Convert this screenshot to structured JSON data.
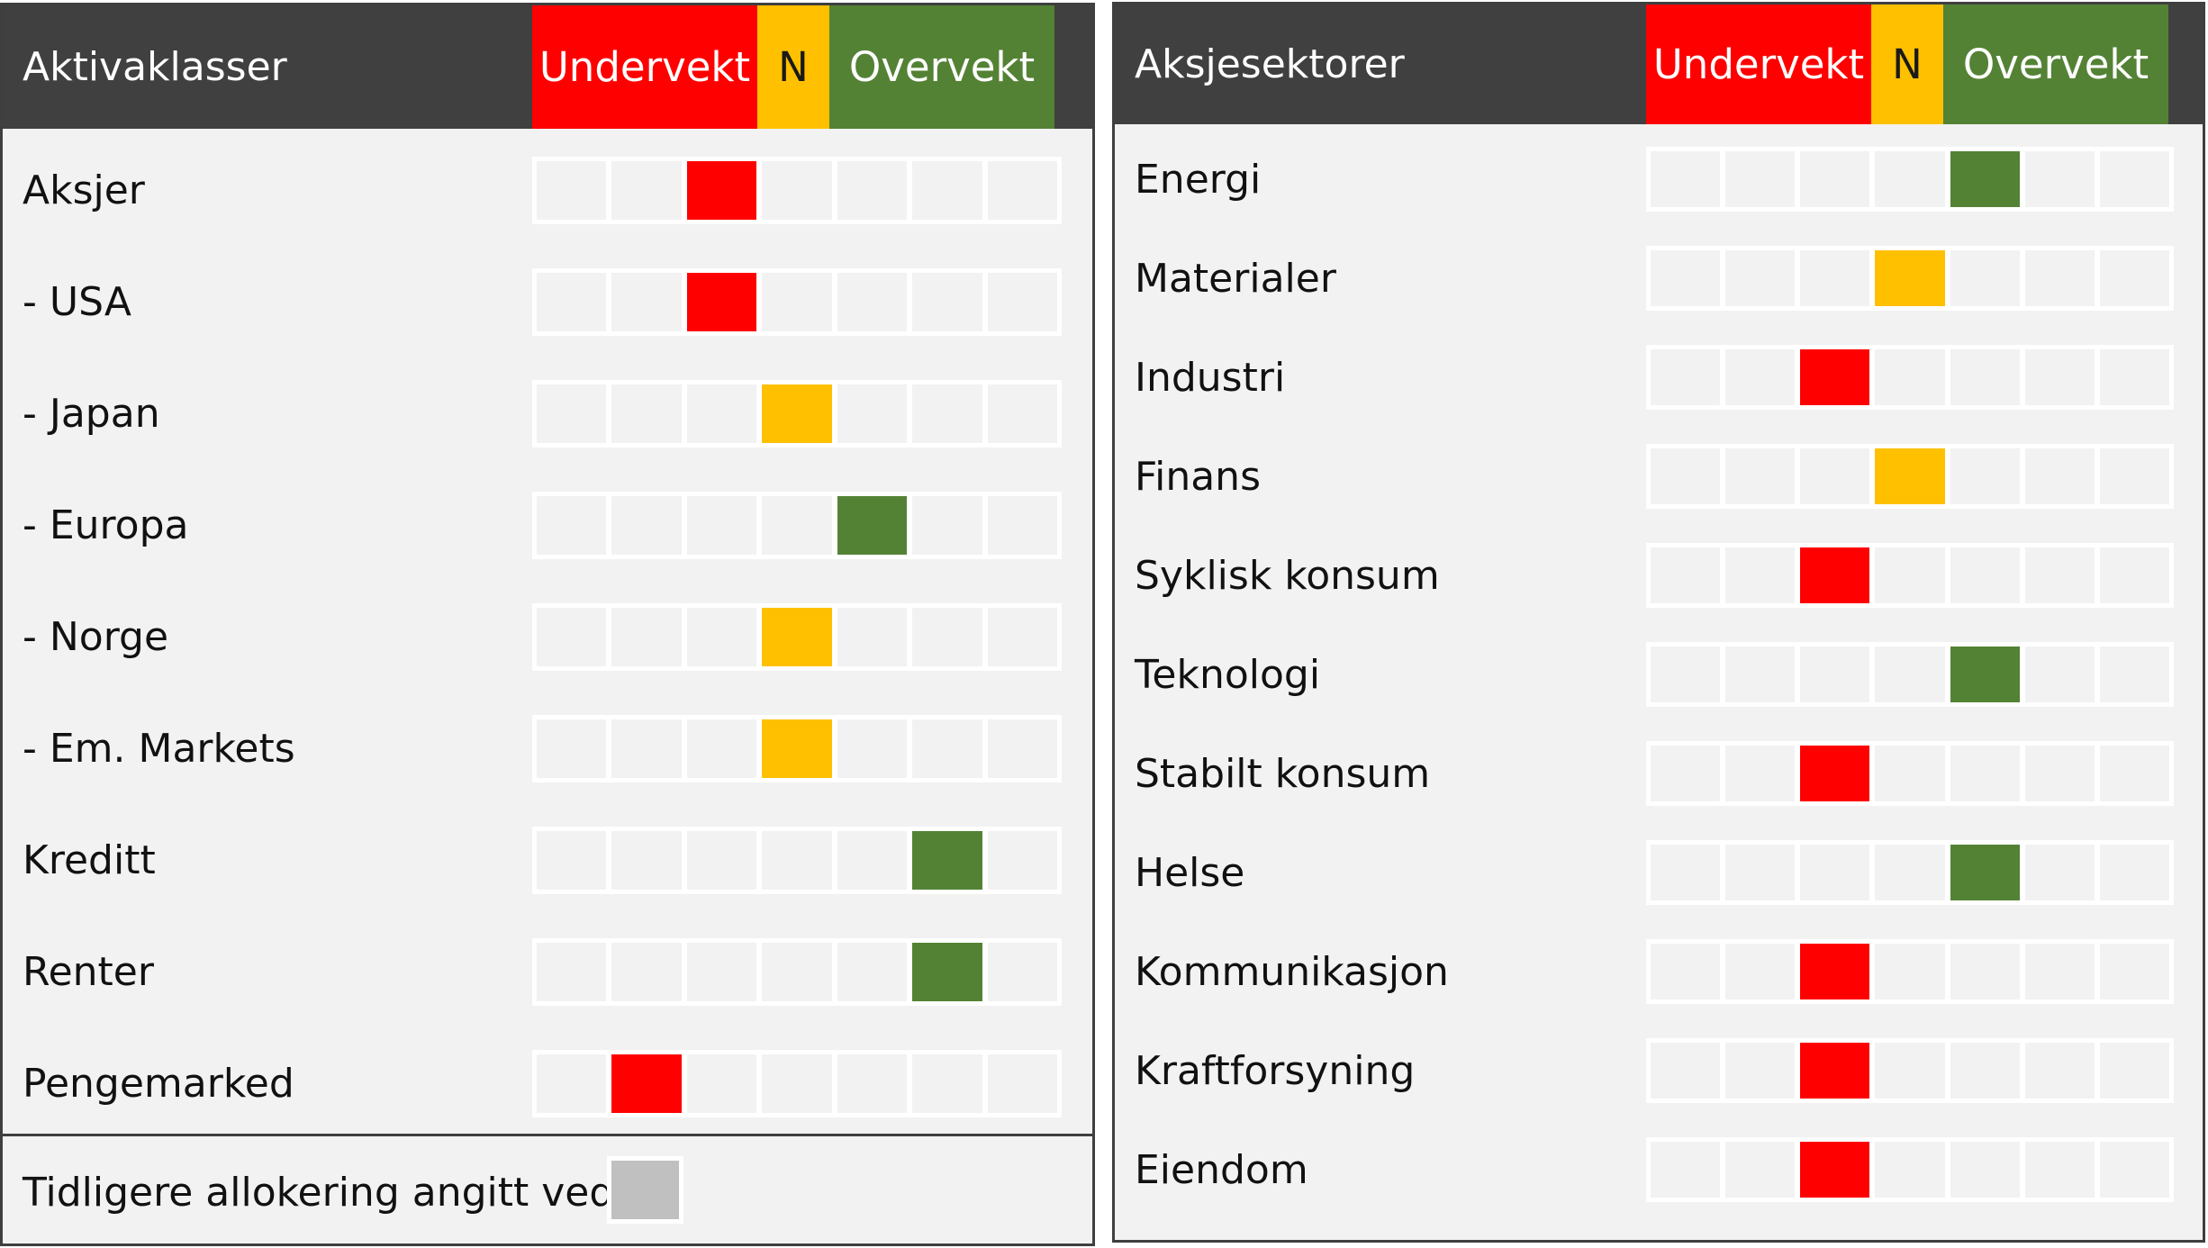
{
  "left_panel": {
    "title": "Aktivaklasser",
    "scale": {
      "under": "Undervekt",
      "neutral": "N",
      "over": "Overvekt"
    },
    "rows": [
      {
        "label": "Aksjer",
        "position": 3,
        "color": "red"
      },
      {
        "label": "- USA",
        "position": 3,
        "color": "red"
      },
      {
        "label": "- Japan",
        "position": 4,
        "color": "yellow"
      },
      {
        "label": "- Europa",
        "position": 5,
        "color": "green"
      },
      {
        "label": "- Norge",
        "position": 4,
        "color": "yellow"
      },
      {
        "label": "- Em. Markets",
        "position": 4,
        "color": "yellow"
      },
      {
        "label": "Kreditt",
        "position": 6,
        "color": "green"
      },
      {
        "label": "Renter",
        "position": 6,
        "color": "green"
      },
      {
        "label": "Pengemarked",
        "position": 2,
        "color": "red"
      }
    ],
    "legend_label": "Tidligere allokering angitt ved"
  },
  "right_panel": {
    "title": "Aksjesektorer",
    "scale": {
      "under": "Undervekt",
      "neutral": "N",
      "over": "Overvekt"
    },
    "rows": [
      {
        "label": "Energi",
        "position": 5,
        "color": "green"
      },
      {
        "label": "Materialer",
        "position": 4,
        "color": "yellow"
      },
      {
        "label": "Industri",
        "position": 3,
        "color": "red"
      },
      {
        "label": "Finans",
        "position": 4,
        "color": "yellow"
      },
      {
        "label": "Syklisk konsum",
        "position": 3,
        "color": "red"
      },
      {
        "label": "Teknologi",
        "position": 5,
        "color": "green"
      },
      {
        "label": "Stabilt konsum",
        "position": 3,
        "color": "red"
      },
      {
        "label": "Helse",
        "position": 5,
        "color": "green"
      },
      {
        "label": "Kommunikasjon",
        "position": 3,
        "color": "red"
      },
      {
        "label": "Kraftforsyning",
        "position": 3,
        "color": "red"
      },
      {
        "label": "Eiendom",
        "position": 3,
        "color": "red"
      }
    ]
  },
  "scale_steps": 7,
  "colors": {
    "header_bg": "#404040",
    "panel_bg": "#f2f2f2",
    "red": "#ff0000",
    "yellow": "#ffc000",
    "green": "#548235",
    "previous_allocation": "#c0c0c0"
  }
}
